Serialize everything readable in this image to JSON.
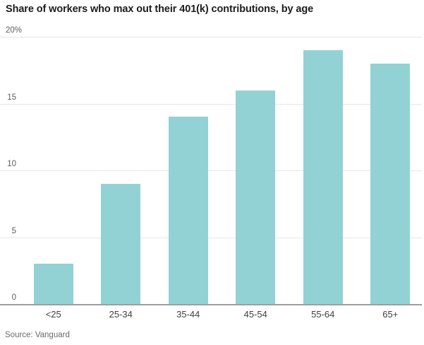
{
  "title": "Share of workers who max out their 401(k) contributions, by age",
  "source": "Source: Vanguard",
  "colors": {
    "bar": "#93d2d4",
    "gridline": "#e6e6e6",
    "baseline": "#9e9e9e",
    "title_text": "#1c1c1c",
    "y_tick_text": "#5d5d5d",
    "x_tick_text": "#3f3f3f",
    "source_text": "#6b6b6b",
    "background": "#ffffff"
  },
  "chart_data": {
    "type": "bar",
    "title": "Share of workers who max out their 401(k) contributions, by age",
    "categories": [
      "<25",
      "25-34",
      "35-44",
      "45-54",
      "55-64",
      "65+"
    ],
    "values": [
      3,
      9,
      14,
      16,
      19,
      18
    ],
    "xlabel": "",
    "ylabel": "",
    "ylim": [
      0,
      20
    ],
    "yticks": [
      {
        "value": 20,
        "label": "20%"
      },
      {
        "value": 15,
        "label": "15"
      },
      {
        "value": 10,
        "label": "10"
      },
      {
        "value": 5,
        "label": "5"
      },
      {
        "value": 0,
        "label": "0"
      }
    ],
    "grid": true,
    "legend": false,
    "source": "Source: Vanguard"
  }
}
